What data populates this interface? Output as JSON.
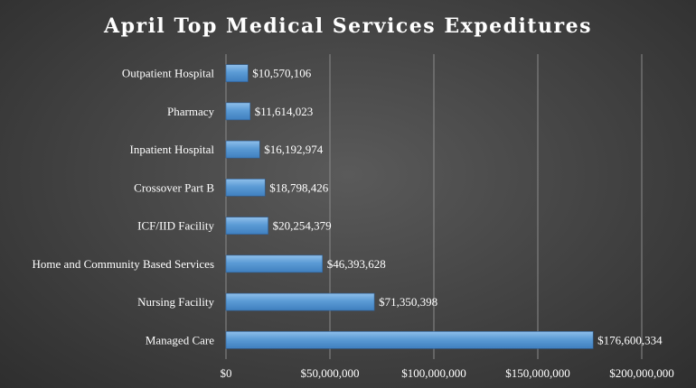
{
  "chart_data": {
    "type": "bar",
    "orientation": "horizontal",
    "title": "April Top Medical Services Expeditures",
    "xlabel": "",
    "ylabel": "",
    "xlim": [
      0,
      200000000
    ],
    "grid": true,
    "legend": "none",
    "categories": [
      "Outpatient Hospital",
      "Pharmacy",
      "Inpatient Hospital",
      "Crossover Part B",
      "ICF/IID Facility",
      "Home and Community Based Services",
      "Nursing Facility",
      "Managed Care"
    ],
    "values": [
      10570106,
      11614023,
      16192974,
      18798426,
      20254379,
      46393628,
      71350398,
      176600334
    ],
    "data_labels": [
      "$10,570,106",
      "$11,614,023",
      "$16,192,974",
      "$18,798,426",
      "$20,254,379",
      "$46,393,628",
      "$71,350,398",
      "$176,600,334"
    ],
    "ticks": [
      0,
      50000000,
      100000000,
      150000000,
      200000000
    ],
    "tick_labels": [
      "$0",
      "$50,000,000",
      "$100,000,000",
      "$150,000,000",
      "$200,000,000"
    ],
    "colors": {
      "bar": "#5b9bd5",
      "text": "#ffffff",
      "grid": "#8a8a8a"
    }
  }
}
